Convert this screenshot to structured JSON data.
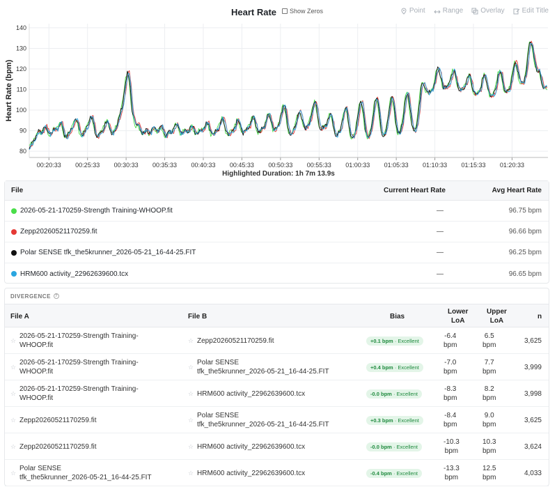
{
  "chart": {
    "title": "Heart Rate",
    "show_zeros_label": "Show Zeros",
    "tools": [
      {
        "label": "Point",
        "icon": "pin-icon"
      },
      {
        "label": "Range",
        "icon": "range-icon"
      },
      {
        "label": "Overlay",
        "icon": "overlay-icon"
      },
      {
        "label": "Edit Title",
        "icon": "edit-icon"
      }
    ],
    "highlighted_duration": "Highlighted Duration: 1h 7m 13.9s"
  },
  "chart_data": {
    "type": "line",
    "ylabel": "Heart Rate (bpm)",
    "xlabel": "",
    "ylim": [
      77,
      142
    ],
    "yticks": [
      80,
      90,
      100,
      110,
      120,
      130,
      140
    ],
    "xticks": [
      "00:20:33",
      "00:25:33",
      "00:30:33",
      "00:35:33",
      "00:40:33",
      "00:45:33",
      "00:50:33",
      "00:55:33",
      "01:00:33",
      "01:05:33",
      "01:10:33",
      "01:15:33",
      "01:20:33"
    ],
    "x_minutes_range": [
      18.0,
      85.2
    ],
    "grid": true,
    "series_keys": [
      [
        18,
        81
      ],
      [
        19,
        88
      ],
      [
        20,
        91
      ],
      [
        21,
        89
      ],
      [
        22,
        93
      ],
      [
        23,
        87
      ],
      [
        24,
        95
      ],
      [
        25,
        88
      ],
      [
        26,
        96
      ],
      [
        27,
        87
      ],
      [
        28,
        94
      ],
      [
        29,
        89
      ],
      [
        30,
        100
      ],
      [
        30.8,
        119
      ],
      [
        31.5,
        98
      ],
      [
        32,
        92
      ],
      [
        33,
        89
      ],
      [
        34,
        90
      ],
      [
        35,
        91
      ],
      [
        36,
        88
      ],
      [
        37,
        92
      ],
      [
        38,
        89
      ],
      [
        39,
        91
      ],
      [
        40,
        89
      ],
      [
        41,
        93
      ],
      [
        42,
        88
      ],
      [
        43,
        95
      ],
      [
        44,
        88
      ],
      [
        45,
        94
      ],
      [
        46,
        89
      ],
      [
        47,
        96
      ],
      [
        48,
        89
      ],
      [
        49,
        97
      ],
      [
        50,
        90
      ],
      [
        51,
        101
      ],
      [
        52,
        88
      ],
      [
        53,
        98
      ],
      [
        54,
        91
      ],
      [
        55,
        103
      ],
      [
        56,
        90
      ],
      [
        57,
        97
      ],
      [
        58,
        87
      ],
      [
        59,
        100
      ],
      [
        60,
        86
      ],
      [
        61,
        103
      ],
      [
        62,
        86
      ],
      [
        63,
        105
      ],
      [
        64,
        87
      ],
      [
        65,
        105
      ],
      [
        66,
        88
      ],
      [
        67,
        107
      ],
      [
        68,
        89
      ],
      [
        69,
        112
      ],
      [
        70,
        108
      ],
      [
        71,
        119
      ],
      [
        72,
        110
      ],
      [
        73,
        118
      ],
      [
        74,
        109
      ],
      [
        75,
        116
      ],
      [
        76,
        107
      ],
      [
        77,
        116
      ],
      [
        78,
        106
      ],
      [
        79,
        118
      ],
      [
        80,
        108
      ],
      [
        81,
        122
      ],
      [
        82,
        112
      ],
      [
        83,
        132
      ],
      [
        84,
        118
      ],
      [
        85,
        110
      ]
    ],
    "series": [
      {
        "name": "2026-05-21-170259-Strength Training-WHOOP.fit",
        "color": "#4ade4a"
      },
      {
        "name": "Zepp20260521170259.fit",
        "color": "#e53935"
      },
      {
        "name": "Polar SENSE tfk_the5krunner_2026-05-21_16-44-25.FIT",
        "color": "#111111"
      },
      {
        "name": "HRM600 activity_22962639600.tcx",
        "color": "#2aa6e0"
      }
    ]
  },
  "files": {
    "headers": {
      "file": "File",
      "current": "Current Heart Rate",
      "avg": "Avg Heart Rate"
    },
    "rows": [
      {
        "name": "2026-05-21-170259-Strength Training-WHOOP.fit",
        "color": "#4ade4a",
        "current": "—",
        "avg": "96.75 bpm"
      },
      {
        "name": "Zepp20260521170259.fit",
        "color": "#e53935",
        "current": "—",
        "avg": "96.66 bpm"
      },
      {
        "name": "Polar SENSE tfk_the5krunner_2026-05-21_16-44-25.FIT",
        "color": "#111111",
        "current": "—",
        "avg": "96.25 bpm"
      },
      {
        "name": "HRM600 activity_22962639600.tcx",
        "color": "#2aa6e0",
        "current": "—",
        "avg": "96.65 bpm"
      }
    ]
  },
  "divergence": {
    "label": "DIVERGENCE",
    "headers": {
      "file_a": "File A",
      "file_b": "File B",
      "bias": "Bias",
      "lower": "Lower\nLoA",
      "upper": "Upper\nLoA",
      "n": "n"
    },
    "rows": [
      {
        "a": "2026-05-21-170259-Strength Training-\nWHOOP.fit",
        "b": "Zepp20260521170259.fit",
        "bias": "+0.1 bpm",
        "rating": "· Excellent",
        "lower": "-6.4\nbpm",
        "upper": "6.5\nbpm",
        "n": "3,625"
      },
      {
        "a": "2026-05-21-170259-Strength Training-\nWHOOP.fit",
        "b": "Polar SENSE\ntfk_the5krunner_2026-05-21_16-44-25.FIT",
        "bias": "+0.4 bpm",
        "rating": "· Excellent",
        "lower": "-7.0\nbpm",
        "upper": "7.7\nbpm",
        "n": "3,999"
      },
      {
        "a": "2026-05-21-170259-Strength Training-\nWHOOP.fit",
        "b": "HRM600 activity_22962639600.tcx",
        "bias": "-0.0 bpm",
        "rating": "· Excellent",
        "lower": "-8.3\nbpm",
        "upper": "8.2\nbpm",
        "n": "3,998"
      },
      {
        "a": "Zepp20260521170259.fit",
        "b": "Polar SENSE\ntfk_the5krunner_2026-05-21_16-44-25.FIT",
        "bias": "+0.3 bpm",
        "rating": "· Excellent",
        "lower": "-8.4\nbpm",
        "upper": "9.0\nbpm",
        "n": "3,625"
      },
      {
        "a": "Zepp20260521170259.fit",
        "b": "HRM600 activity_22962639600.tcx",
        "bias": "-0.0 bpm",
        "rating": "· Excellent",
        "lower": "-10.3\nbpm",
        "upper": "10.3\nbpm",
        "n": "3,624"
      },
      {
        "a": "Polar SENSE\ntfk_the5krunner_2026-05-21_16-44-25.FIT",
        "b": "HRM600 activity_22962639600.tcx",
        "bias": "-0.4 bpm",
        "rating": "· Excellent",
        "lower": "-13.3\nbpm",
        "upper": "12.5\nbpm",
        "n": "4,033"
      }
    ]
  }
}
